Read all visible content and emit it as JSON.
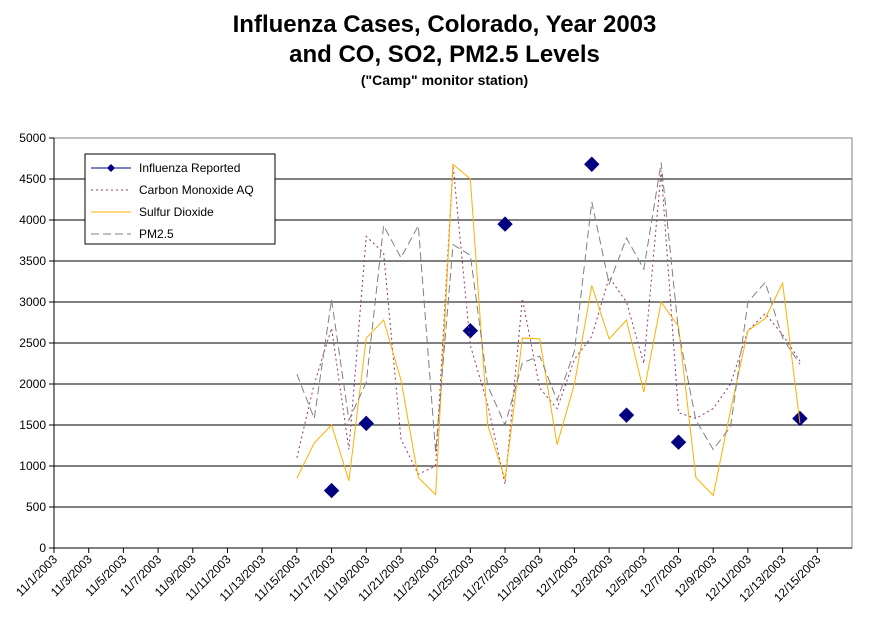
{
  "chart_data": {
    "type": "line",
    "title_lines": [
      "Influenza Cases, Colorado, Year 2003",
      "and CO, SO2, PM2.5 Levels"
    ],
    "subtitle": "(\"Camp\" monitor station)",
    "ylim": [
      0,
      5000
    ],
    "yticks": [
      0,
      500,
      1000,
      1500,
      2000,
      2500,
      3000,
      3500,
      4000,
      4500,
      5000
    ],
    "xlim": [
      "11/1/2003",
      "12/17/2003"
    ],
    "xtick_labels": [
      "11/1/2003",
      "11/3/2003",
      "11/5/2003",
      "11/7/2003",
      "11/9/2003",
      "11/11/2003",
      "11/13/2003",
      "11/15/2003",
      "11/17/2003",
      "11/19/2003",
      "11/21/2003",
      "11/23/2003",
      "11/25/2003",
      "11/27/2003",
      "11/29/2003",
      "12/1/2003",
      "12/3/2003",
      "12/5/2003",
      "12/7/2003",
      "12/9/2003",
      "12/11/2003",
      "12/13/2003",
      "12/15/2003"
    ],
    "grid": "horizontal",
    "legend_position": "top-left",
    "series": [
      {
        "name": "Influenza Reported",
        "style": "markers",
        "color": "#000080",
        "x": [
          "11/17/2003",
          "11/19/2003",
          "11/25/2003",
          "11/27/2003",
          "12/2/2003",
          "12/4/2003",
          "12/7/2003",
          "12/14/2003"
        ],
        "values": [
          700,
          1520,
          2650,
          3950,
          4680,
          1620,
          1290,
          1580
        ]
      },
      {
        "name": "Carbon Monoxide AQ",
        "style": "dotted",
        "color": "#993366",
        "x": [
          "11/15/2003",
          "11/16/2003",
          "11/17/2003",
          "11/18/2003",
          "11/19/2003",
          "11/20/2003",
          "11/21/2003",
          "11/22/2003",
          "11/23/2003",
          "11/24/2003",
          "11/25/2003",
          "11/26/2003",
          "11/27/2003",
          "11/28/2003",
          "11/29/2003",
          "11/30/2003",
          "12/1/2003",
          "12/2/2003",
          "12/3/2003",
          "12/4/2003",
          "12/5/2003",
          "12/6/2003",
          "12/7/2003",
          "12/8/2003",
          "12/9/2003",
          "12/10/2003",
          "12/11/2003",
          "12/12/2003",
          "12/13/2003",
          "12/14/2003"
        ],
        "values": [
          1100,
          2000,
          2680,
          1200,
          3800,
          3600,
          1330,
          900,
          1000,
          4680,
          2470,
          1750,
          780,
          3040,
          1950,
          1700,
          2300,
          2580,
          3300,
          3000,
          2250,
          4600,
          1650,
          1580,
          1700,
          2000,
          2650,
          2860,
          2600,
          2280
        ]
      },
      {
        "name": "Sulfur Dioxide",
        "style": "solid",
        "color": "#FFB000",
        "x": [
          "11/15/2003",
          "11/16/2003",
          "11/17/2003",
          "11/18/2003",
          "11/19/2003",
          "11/20/2003",
          "11/21/2003",
          "11/22/2003",
          "11/23/2003",
          "11/24/2003",
          "11/25/2003",
          "11/26/2003",
          "11/27/2003",
          "11/28/2003",
          "11/29/2003",
          "11/30/2003",
          "12/1/2003",
          "12/2/2003",
          "12/3/2003",
          "12/4/2003",
          "12/5/2003",
          "12/6/2003",
          "12/7/2003",
          "12/8/2003",
          "12/9/2003",
          "12/10/2003",
          "12/11/2003",
          "12/12/2003",
          "12/13/2003",
          "12/14/2003"
        ],
        "values": [
          850,
          1280,
          1500,
          820,
          2560,
          2780,
          2050,
          860,
          650,
          4680,
          4500,
          1500,
          840,
          2560,
          2550,
          1260,
          2000,
          3200,
          2550,
          2780,
          1900,
          3000,
          2700,
          860,
          640,
          1680,
          2650,
          2800,
          3230,
          1520
        ]
      },
      {
        "name": "PM2.5",
        "style": "dashed",
        "color": "#808080",
        "x": [
          "11/15/2003",
          "11/16/2003",
          "11/17/2003",
          "11/18/2003",
          "11/19/2003",
          "11/20/2003",
          "11/21/2003",
          "11/22/2003",
          "11/23/2003",
          "11/24/2003",
          "11/25/2003",
          "11/26/2003",
          "11/27/2003",
          "11/28/2003",
          "11/29/2003",
          "11/30/2003",
          "12/1/2003",
          "12/2/2003",
          "12/3/2003",
          "12/4/2003",
          "12/5/2003",
          "12/6/2003",
          "12/7/2003",
          "12/8/2003",
          "12/9/2003",
          "12/10/2003",
          "12/11/2003",
          "12/12/2003",
          "12/13/2003",
          "12/14/2003"
        ],
        "values": [
          2120,
          1580,
          3030,
          1560,
          2020,
          3930,
          3540,
          3930,
          1170,
          3700,
          3570,
          1980,
          1500,
          2260,
          2340,
          1800,
          2400,
          4220,
          3220,
          3780,
          3400,
          4700,
          2640,
          1560,
          1200,
          1480,
          3000,
          3240,
          2560,
          2240
        ]
      }
    ]
  }
}
